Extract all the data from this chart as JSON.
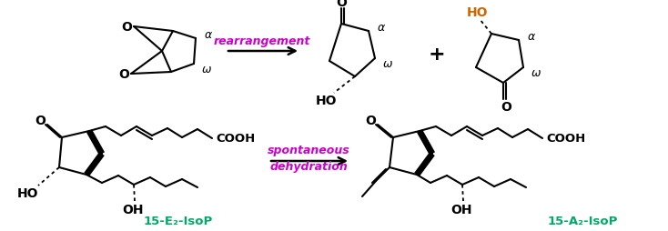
{
  "bg_color": "#ffffff",
  "purple": "#cc00cc",
  "green": "#00aa66",
  "black": "#000000",
  "orange": "#cc6600",
  "alpha": "α",
  "omega": "ω",
  "rearrangement": "rearrangement",
  "spontaneous": "spontaneous",
  "dehydration": "dehydration",
  "HO": "HO",
  "OH": "OH",
  "O": "O",
  "COOH": "COOH",
  "label_E2": "15-E₂-IsoP",
  "label_A2": "15-A₂-IsoP"
}
